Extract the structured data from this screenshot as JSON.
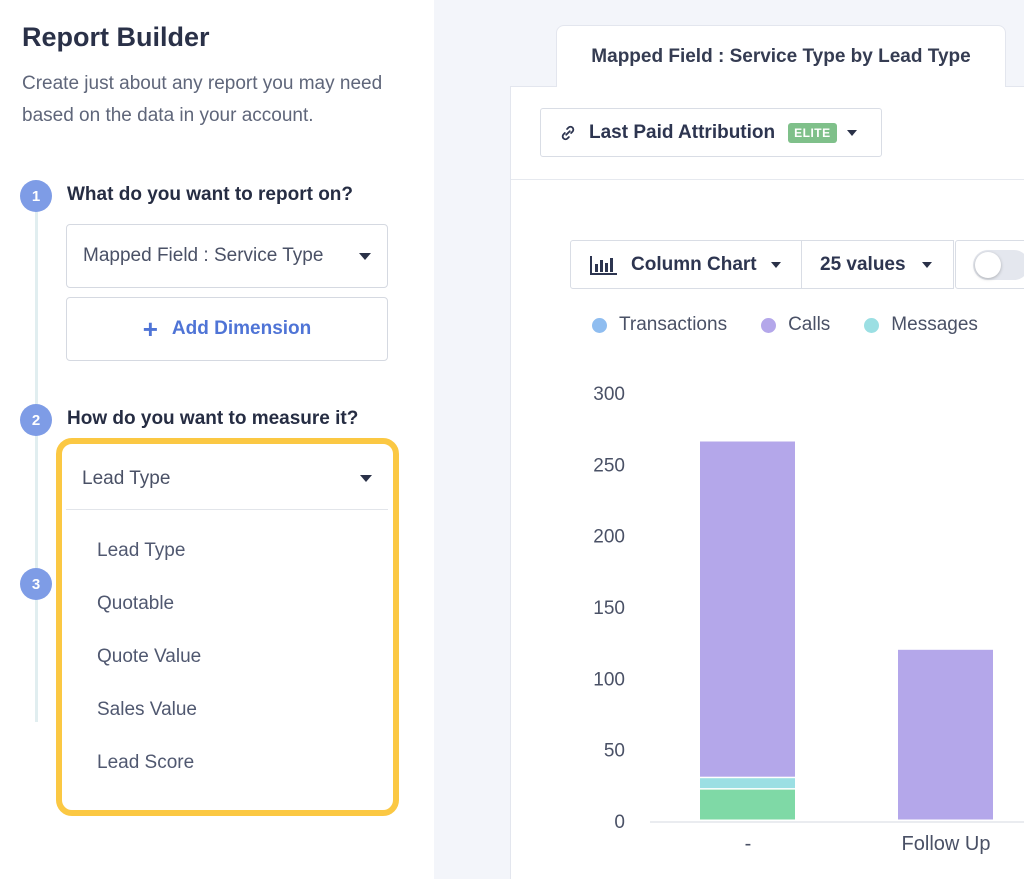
{
  "report": {
    "title": "Report Builder",
    "description": "Create just about any report you may need based on the data in your account."
  },
  "steps": [
    {
      "number": "1",
      "label": "What do you want to report on?"
    },
    {
      "number": "2",
      "label": "How do you want to measure it?"
    },
    {
      "number": "3",
      "label": ""
    }
  ],
  "dimension": {
    "selected": "Mapped Field : Service Type",
    "add_label": "Add Dimension",
    "add_icon": "plus-icon"
  },
  "measure": {
    "selected": "Lead Type",
    "options": [
      "Lead Type",
      "Quotable",
      "Quote Value",
      "Sales Value",
      "Lead Score"
    ]
  },
  "colors": {
    "highlight": "#fbc843",
    "accent": "#4f74d6",
    "step": "#7e9ce6"
  },
  "tab": {
    "label": "Mapped Field : Service Type by Lead Type"
  },
  "attribution": {
    "label": "Last Paid Attribution",
    "badge": "ELITE",
    "icon": "link-icon"
  },
  "controls": {
    "chart_type": "Column Chart",
    "values": "25 values",
    "chart_icon": "bar-chart-icon"
  },
  "chart_data": {
    "type": "bar",
    "stacked": true,
    "categories": [
      "-",
      "Follow Up"
    ],
    "series": [
      {
        "name": "Transactions",
        "color": "#8fbdf0",
        "values": [
          0,
          0
        ]
      },
      {
        "name": "Calls",
        "color": "#b4a7ea",
        "values": [
          236,
          120
        ]
      },
      {
        "name": "Messages",
        "color": "#9bdfe3",
        "values": [
          8,
          0
        ]
      },
      {
        "name": "",
        "color": "#7fd9a6",
        "values": [
          22,
          0
        ]
      }
    ],
    "yticks": [
      "300",
      "250",
      "200",
      "150",
      "100",
      "50",
      "0"
    ],
    "ylim": [
      0,
      300
    ],
    "legend_position": "top",
    "grid": false
  }
}
